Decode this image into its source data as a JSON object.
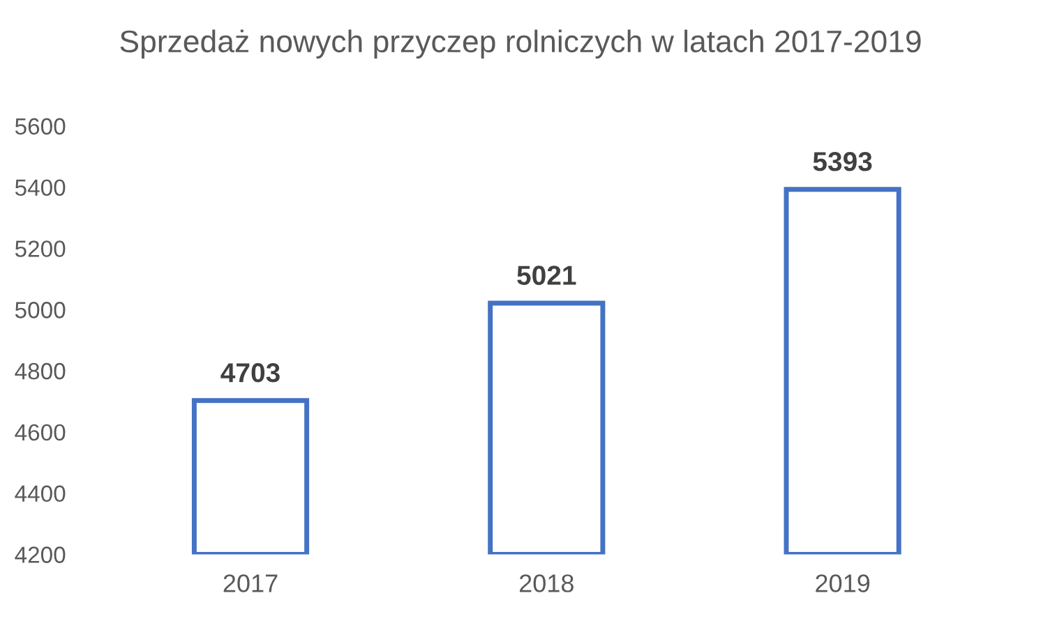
{
  "chart_data": {
    "type": "bar",
    "title": "Sprzedaż nowych przyczep rolniczych w latach 2017-2019",
    "categories": [
      "2017",
      "2018",
      "2019"
    ],
    "values": [
      4703,
      5021,
      5393
    ],
    "color": "#4472c4",
    "ylim": [
      4200,
      5600
    ],
    "yticks": [
      4200,
      4400,
      4600,
      4800,
      5000,
      5200,
      5400,
      5600
    ],
    "grid": false,
    "data_labels": true
  }
}
